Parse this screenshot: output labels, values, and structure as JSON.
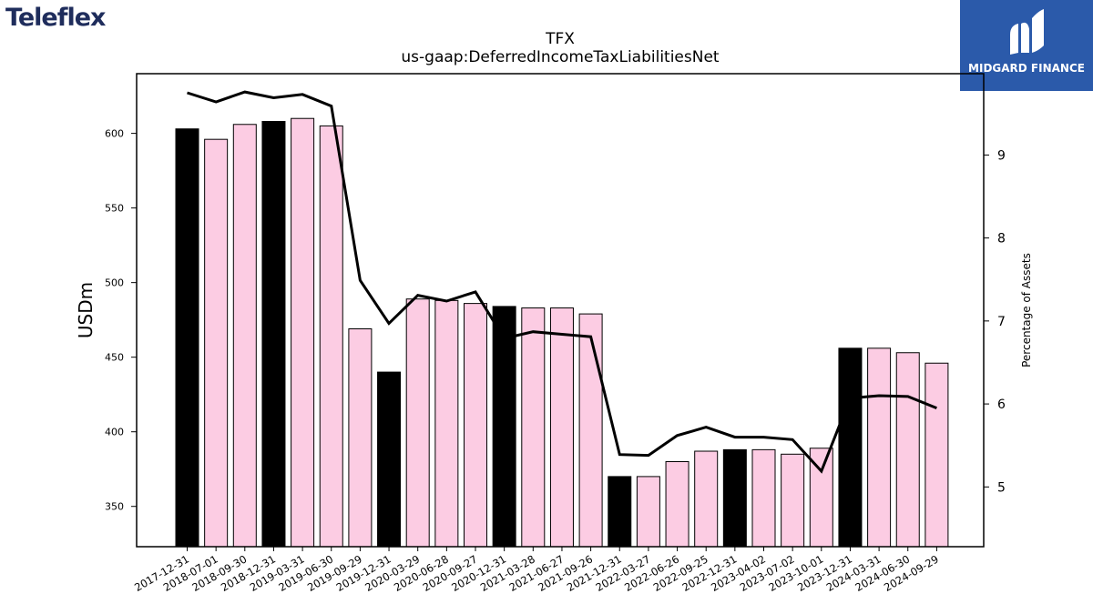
{
  "brand": {
    "company_logo_text": "Teleflex",
    "watermark_text": "MIDGARD FINANCE"
  },
  "chart_data": {
    "type": "bar",
    "title": "TFX",
    "subtitle": "us-gaap:DeferredIncomeTaxLiabilitiesNet",
    "ylabel": "USDm",
    "y2label": "Percentage of Assets",
    "ylim": [
      323,
      640
    ],
    "y2lim": [
      4.28,
      9.98
    ],
    "yticks": [
      350,
      400,
      450,
      500,
      550,
      600
    ],
    "y2ticks": [
      5,
      6,
      7,
      8,
      9
    ],
    "categories": [
      "2017-12-31",
      "2018-07-01",
      "2018-09-30",
      "2018-12-31",
      "2019-03-31",
      "2019-06-30",
      "2019-09-29",
      "2019-12-31",
      "2020-03-29",
      "2020-06-28",
      "2020-09-27",
      "2020-12-31",
      "2021-03-28",
      "2021-06-27",
      "2021-09-26",
      "2021-12-31",
      "2022-03-27",
      "2022-06-26",
      "2022-09-25",
      "2022-12-31",
      "2023-04-02",
      "2023-07-02",
      "2023-10-01",
      "2023-12-31",
      "2024-03-31",
      "2024-06-30",
      "2024-09-29"
    ],
    "series": [
      {
        "values": [
          603,
          596,
          606,
          608,
          610,
          605,
          469,
          440,
          489,
          488,
          486,
          484,
          483,
          483,
          479,
          370,
          370,
          380,
          387,
          388,
          388,
          385,
          389,
          456,
          456,
          453,
          446
        ]
      },
      {
        "axis": "right",
        "values": [
          9.75,
          9.64,
          9.76,
          9.69,
          9.73,
          9.59,
          7.49,
          6.97,
          7.31,
          7.24,
          7.35,
          6.79,
          6.87,
          6.84,
          6.81,
          5.39,
          5.38,
          5.62,
          5.72,
          5.6,
          5.6,
          5.57,
          5.19,
          6.07,
          6.1,
          6.09,
          5.95
        ]
      }
    ],
    "bar_colors": {
      "year_end": "#000000",
      "quarter": "#fccce3"
    },
    "line_color": "#000000",
    "grid": false,
    "legend": "none"
  }
}
